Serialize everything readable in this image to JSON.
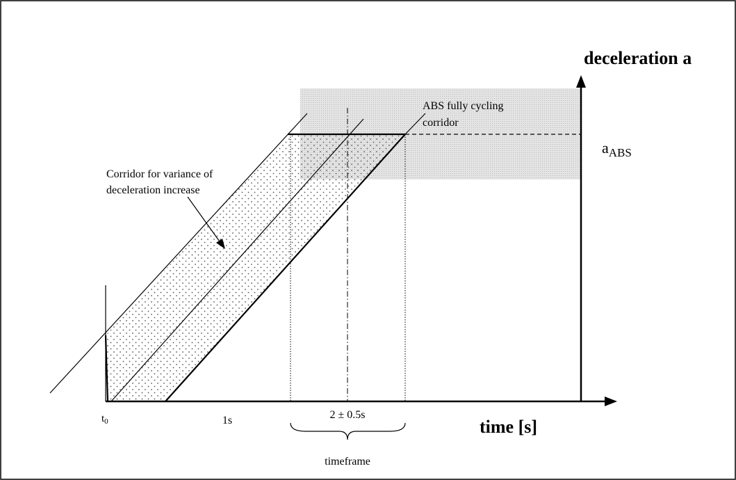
{
  "y_axis_label": "deceleration a",
  "a_abs": {
    "main": "a",
    "sub": "ABS"
  },
  "abs_corridor_label": [
    "ABS fully cycling",
    "corridor"
  ],
  "variance_corridor_label": [
    "Corridor for variance of",
    "deceleration increase"
  ],
  "t0": {
    "main": "t",
    "sub": "0"
  },
  "tick_1s": "1s",
  "tick_2s": "2 ± 0.5s",
  "x_axis_label": "time [s]",
  "timeframe_label": "timeframe"
}
